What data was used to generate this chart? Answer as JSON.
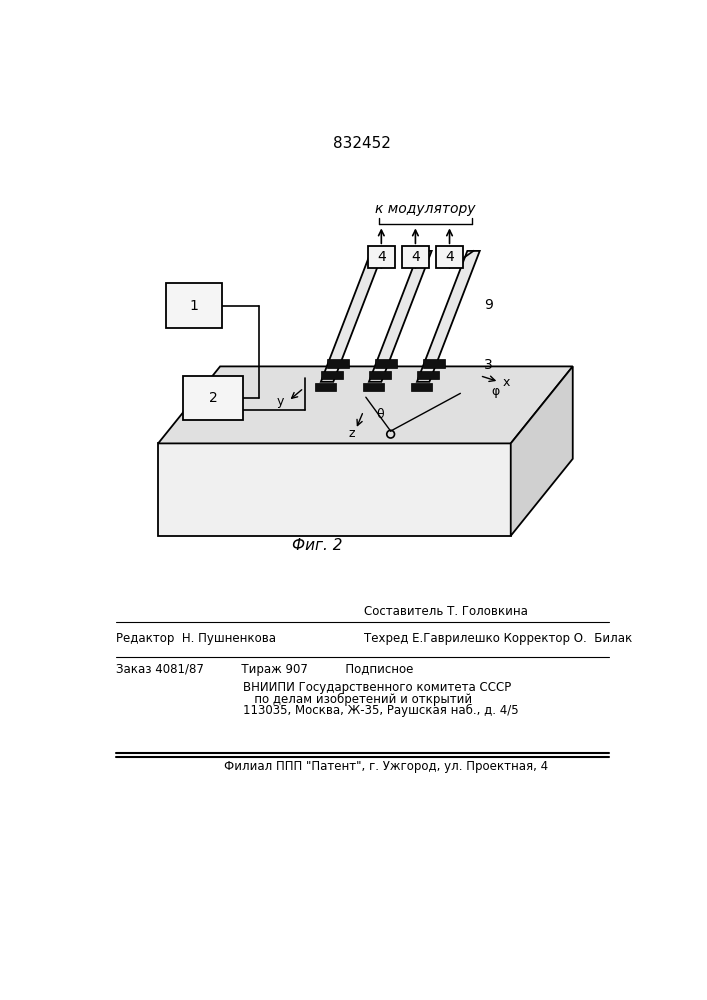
{
  "patent_number": "832452",
  "fig_label": "Фиг. 2",
  "bg_color": "#ffffff",
  "line_color": "#000000",
  "footer_line1_left": "Редактор  Н. Пушненкова",
  "footer_line1_right": "Составитель Т. Головкина",
  "footer_line2_right": "Техред Е.Гаврилешко Корректор О.  Билак",
  "footer_line3": "Заказ 4081/87          Тираж 907          Подписное",
  "footer_line4": "ВНИИПИ Государственного комитета СССР",
  "footer_line5": "   по делам изобретений и открытий",
  "footer_line6": "113035, Москва, Ж-35, Раушская наб., д. 4/5",
  "footer_line7": "Филиал ППП \"Патент\", г. Ужгород, ул. Проектная, 4",
  "k_modulyatoru": "к модулятору"
}
